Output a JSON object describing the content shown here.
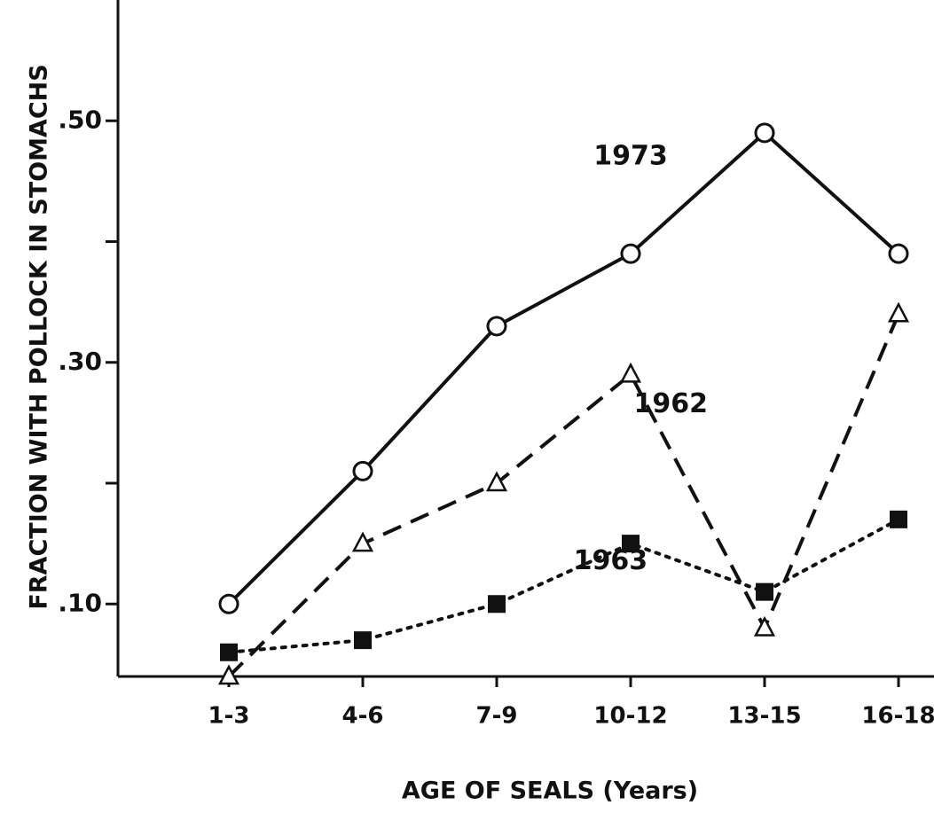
{
  "chart_data": {
    "type": "line",
    "y_label": "FRACTION WITH POLLOCK IN STOMACHS",
    "x_label": "AGE OF SEALS (Years)",
    "categories": [
      "1-3",
      "4-6",
      "7-9",
      "10-12",
      "13-15",
      "16-18"
    ],
    "series": [
      {
        "name": "1973",
        "color": "#111111",
        "marker": "circle",
        "line": "solid",
        "values": [
          0.1,
          0.21,
          0.33,
          0.39,
          0.49,
          0.39
        ]
      },
      {
        "name": "1962",
        "color": "#111111",
        "marker": "triangle",
        "line": "dashed",
        "values": [
          0.04,
          0.15,
          0.2,
          0.29,
          0.08,
          0.34
        ]
      },
      {
        "name": "1963",
        "color": "#111111",
        "marker": "square",
        "line": "dotted",
        "values": [
          0.06,
          0.07,
          0.1,
          0.15,
          0.11,
          0.17
        ]
      }
    ],
    "ylim": [
      0.04,
      0.6
    ],
    "yticks": [
      {
        "value": 0.1,
        "label": ".10"
      },
      {
        "value": 0.2,
        "label": null
      },
      {
        "value": 0.3,
        "label": ".30"
      },
      {
        "value": 0.4,
        "label": null
      },
      {
        "value": 0.5,
        "label": ".50"
      }
    ],
    "grid": false
  }
}
